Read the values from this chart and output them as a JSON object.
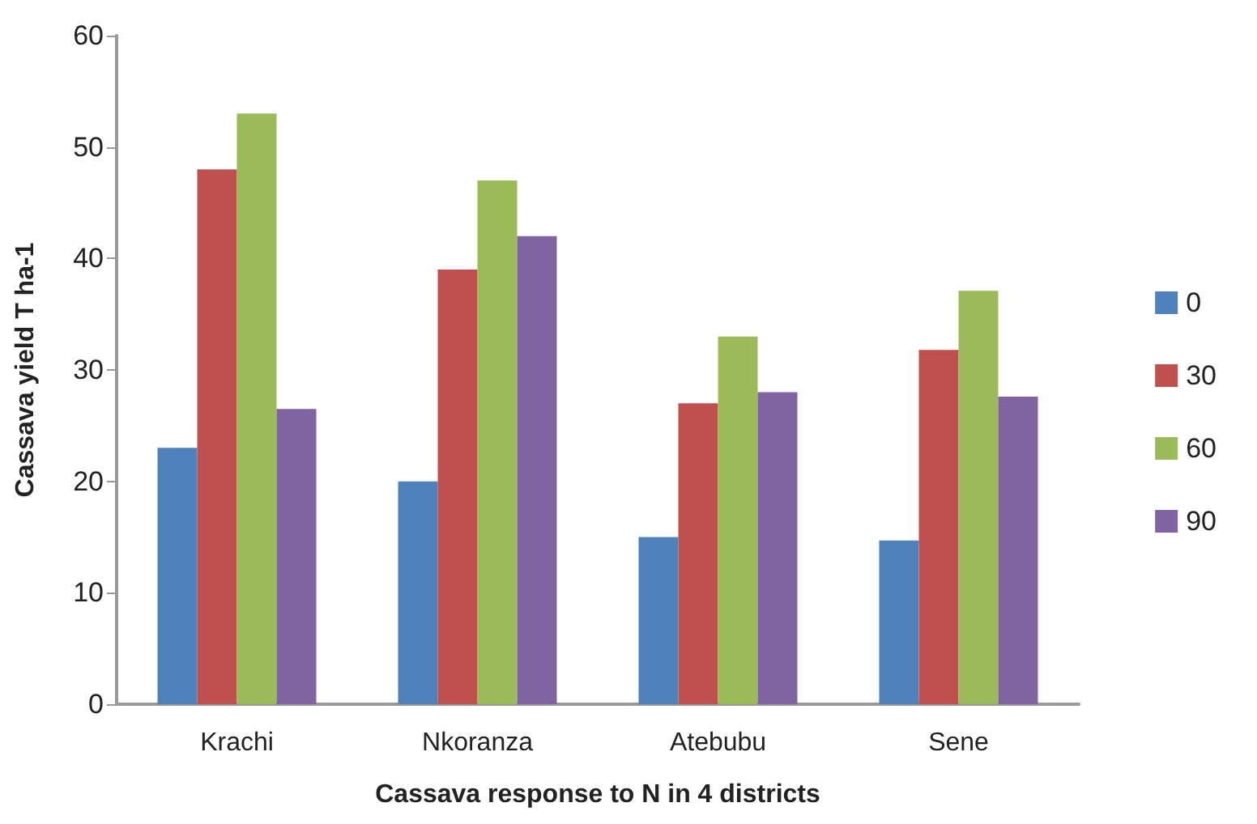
{
  "chart_data": {
    "type": "bar",
    "xlabel": "Cassava response to N in 4 districts",
    "ylabel": "Cassava yield T ha-1",
    "categories": [
      "Krachi",
      "Nkoranza",
      "Atebubu",
      "Sene"
    ],
    "series": [
      {
        "name": "0",
        "color": "#4f81bd",
        "values": [
          23,
          20,
          15,
          14.7
        ]
      },
      {
        "name": "30",
        "color": "#c0504d",
        "values": [
          48,
          39,
          27,
          31.8
        ]
      },
      {
        "name": "60",
        "color": "#9bbb59",
        "values": [
          53,
          47,
          33,
          37.1
        ]
      },
      {
        "name": "90",
        "color": "#8064a2",
        "values": [
          26.5,
          42,
          28,
          27.6
        ]
      }
    ],
    "ylim": [
      0,
      60
    ],
    "yticks": [
      0,
      10,
      20,
      30,
      40,
      50,
      60
    ],
    "grid": false,
    "legend": "right"
  }
}
